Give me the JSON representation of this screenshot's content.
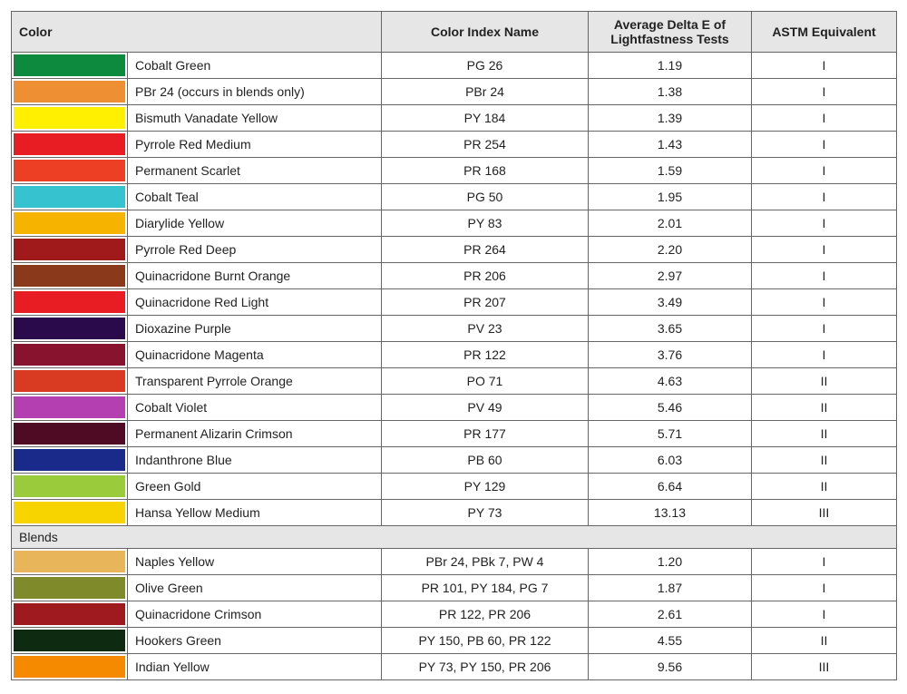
{
  "table": {
    "headers": {
      "color": "Color",
      "index": "Color Index Name",
      "delta": "Average Delta E of Lightfastness Tests",
      "astm": "ASTM Equivalent"
    },
    "header_bg": "#e6e6e6",
    "border_color": "#666666",
    "font_family": "Arial",
    "font_size_pt": 11,
    "rows": [
      {
        "swatch": "#0e8a3f",
        "name": "Cobalt Green",
        "index": "PG 26",
        "delta": "1.19",
        "astm": "I"
      },
      {
        "swatch": "#ee8f33",
        "name": "PBr 24 (occurs in blends only)",
        "index": "PBr 24",
        "delta": "1.38",
        "astm": "I"
      },
      {
        "swatch": "#fef000",
        "name": "Bismuth Vanadate Yellow",
        "index": "PY 184",
        "delta": "1.39",
        "astm": "I"
      },
      {
        "swatch": "#e71d23",
        "name": "Pyrrole Red Medium",
        "index": "PR 254",
        "delta": "1.43",
        "astm": "I"
      },
      {
        "swatch": "#ed3f23",
        "name": "Permanent Scarlet",
        "index": "PR 168",
        "delta": "1.59",
        "astm": "I"
      },
      {
        "swatch": "#36c3cf",
        "name": "Cobalt Teal",
        "index": "PG 50",
        "delta": "1.95",
        "astm": "I"
      },
      {
        "swatch": "#f6b400",
        "name": "Diarylide Yellow",
        "index": "PY 83",
        "delta": "2.01",
        "astm": "I"
      },
      {
        "swatch": "#a01a1c",
        "name": "Pyrrole Red Deep",
        "index": "PR 264",
        "delta": "2.20",
        "astm": "I"
      },
      {
        "swatch": "#8a3a1b",
        "name": "Quinacridone Burnt Orange",
        "index": "PR 206",
        "delta": "2.97",
        "astm": "I"
      },
      {
        "swatch": "#e71d23",
        "name": "Quinacridone Red Light",
        "index": "PR 207",
        "delta": "3.49",
        "astm": "I"
      },
      {
        "swatch": "#2a0a4a",
        "name": "Dioxazine Purple",
        "index": "PV 23",
        "delta": "3.65",
        "astm": "I"
      },
      {
        "swatch": "#88132f",
        "name": "Quinacridone Magenta",
        "index": "PR 122",
        "delta": "3.76",
        "astm": "I"
      },
      {
        "swatch": "#d93a22",
        "name": "Transparent Pyrrole Orange",
        "index": "PO 71",
        "delta": "4.63",
        "astm": "II"
      },
      {
        "swatch": "#b43fb1",
        "name": "Cobalt Violet",
        "index": "PV 49",
        "delta": "5.46",
        "astm": "II"
      },
      {
        "swatch": "#4f0a24",
        "name": "Permanent Alizarin Crimson",
        "index": "PR 177",
        "delta": "5.71",
        "astm": "II"
      },
      {
        "swatch": "#1a2a8a",
        "name": "Indanthrone Blue",
        "index": "PB 60",
        "delta": "6.03",
        "astm": "II"
      },
      {
        "swatch": "#9acb3b",
        "name": "Green Gold",
        "index": "PY 129",
        "delta": "6.64",
        "astm": "II"
      },
      {
        "swatch": "#f7d400",
        "name": "Hansa Yellow Medium",
        "index": "PY 73",
        "delta": "13.13",
        "astm": "III"
      }
    ],
    "section_label": "Blends",
    "blend_rows": [
      {
        "swatch": "#e9b55b",
        "name": "Naples Yellow",
        "index": "PBr 24, PBk 7, PW 4",
        "delta": "1.20",
        "astm": "I"
      },
      {
        "swatch": "#7f8a2a",
        "name": "Olive Green",
        "index": "PR 101, PY 184, PG 7",
        "delta": "1.87",
        "astm": "I"
      },
      {
        "swatch": "#9f1a1f",
        "name": "Quinacridone Crimson",
        "index": "PR 122, PR 206",
        "delta": "2.61",
        "astm": "I"
      },
      {
        "swatch": "#0e2a10",
        "name": "Hookers Green",
        "index": "PY 150, PB 60, PR 122",
        "delta": "4.55",
        "astm": "II"
      },
      {
        "swatch": "#f58a00",
        "name": "Indian Yellow",
        "index": "PY 73, PY 150, PR 206",
        "delta": "9.56",
        "astm": "III"
      }
    ]
  }
}
